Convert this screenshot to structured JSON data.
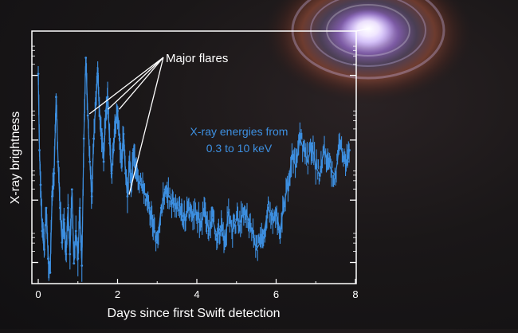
{
  "chart_data": {
    "type": "line",
    "title": "",
    "xlabel": "Days since first Swift detection",
    "ylabel": "X-ray brightness",
    "xlim": [
      -0.15,
      8.05
    ],
    "ylim": [
      0,
      1
    ],
    "y_scale": "log",
    "y_tick_labels_shown": false,
    "x_ticks": [
      {
        "value": 0,
        "label": "0"
      },
      {
        "value": 2,
        "label": "2"
      },
      {
        "value": 4,
        "label": "4"
      },
      {
        "value": 6,
        "label": "6"
      },
      {
        "value": 8,
        "label": "8"
      }
    ],
    "series": [
      {
        "color": "#3d8fe0",
        "x": [
          0.0,
          0.03,
          0.06,
          0.1,
          0.15,
          0.2,
          0.25,
          0.3,
          0.35,
          0.4,
          0.45,
          0.5,
          0.55,
          0.6,
          0.65,
          0.7,
          0.75,
          0.8,
          0.85,
          0.9,
          0.95,
          1.0,
          1.05,
          1.1,
          1.15,
          1.2,
          1.25,
          1.3,
          1.35,
          1.4,
          1.45,
          1.5,
          1.55,
          1.6,
          1.65,
          1.7,
          1.75,
          1.8,
          1.85,
          1.9,
          1.95,
          2.0,
          2.05,
          2.1,
          2.15,
          2.2,
          2.25,
          2.3,
          2.35,
          2.4,
          2.45,
          2.5,
          2.6,
          2.7,
          2.8,
          2.9,
          3.0,
          3.1,
          3.2,
          3.3,
          3.4,
          3.5,
          3.6,
          3.7,
          3.8,
          3.9,
          4.0,
          4.1,
          4.2,
          4.3,
          4.4,
          4.5,
          4.6,
          4.7,
          4.8,
          4.9,
          5.0,
          5.1,
          5.2,
          5.3,
          5.4,
          5.5,
          5.6,
          5.7,
          5.8,
          5.9,
          6.0,
          6.1,
          6.2,
          6.3,
          6.4,
          6.5,
          6.6,
          6.7,
          6.8,
          6.9,
          7.0,
          7.1,
          7.2,
          7.3,
          7.4,
          7.5,
          7.6,
          7.7,
          7.8,
          7.85
        ],
        "y": [
          0.88,
          0.55,
          0.4,
          0.2,
          0.12,
          0.3,
          0.08,
          0.02,
          0.35,
          0.45,
          0.78,
          0.5,
          0.3,
          0.15,
          0.25,
          0.1,
          0.3,
          0.1,
          0.38,
          0.06,
          0.2,
          0.08,
          0.3,
          0.05,
          0.6,
          0.95,
          0.7,
          0.5,
          0.35,
          0.6,
          0.75,
          0.88,
          0.7,
          0.6,
          0.5,
          0.72,
          0.78,
          0.58,
          0.45,
          0.55,
          0.68,
          0.72,
          0.6,
          0.5,
          0.62,
          0.45,
          0.35,
          0.5,
          0.4,
          0.55,
          0.48,
          0.42,
          0.4,
          0.36,
          0.3,
          0.22,
          0.15,
          0.3,
          0.38,
          0.35,
          0.32,
          0.3,
          0.28,
          0.25,
          0.3,
          0.26,
          0.28,
          0.22,
          0.3,
          0.2,
          0.25,
          0.18,
          0.22,
          0.15,
          0.28,
          0.2,
          0.25,
          0.24,
          0.3,
          0.25,
          0.2,
          0.12,
          0.15,
          0.2,
          0.3,
          0.25,
          0.28,
          0.2,
          0.32,
          0.4,
          0.52,
          0.48,
          0.6,
          0.55,
          0.5,
          0.58,
          0.48,
          0.44,
          0.55,
          0.5,
          0.46,
          0.44,
          0.58,
          0.52,
          0.5,
          0.55
        ]
      }
    ],
    "annotations": [
      {
        "text": "Major flares",
        "color": "#ffffff",
        "targets": [
          1.25,
          1.72,
          2.0,
          2.25
        ]
      },
      {
        "text_lines": [
          "X-ray energies from",
          "0.3 to 10 keV"
        ],
        "color": "#3d8fe0"
      }
    ],
    "frame_color": "#ffffff",
    "background": "space illustration with glowing accretion disk (top-right)"
  }
}
